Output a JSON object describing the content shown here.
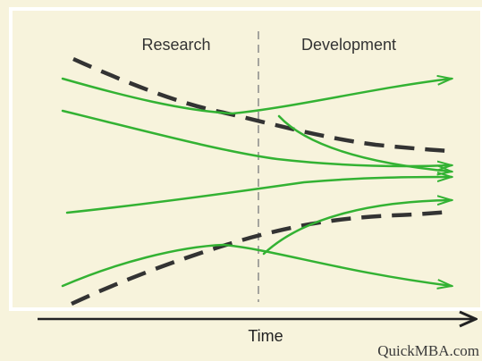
{
  "phases": {
    "left_label": "Research",
    "right_label": "Development"
  },
  "axis": {
    "x_label": "Time"
  },
  "credit": "QuickMBA.com",
  "colors": {
    "background": "#f7f3dc",
    "panel_border": "#ffffff",
    "divider": "#8a8a8a",
    "green_path": "#33b233",
    "dashed_path": "#333333",
    "axis": "#222222"
  }
}
